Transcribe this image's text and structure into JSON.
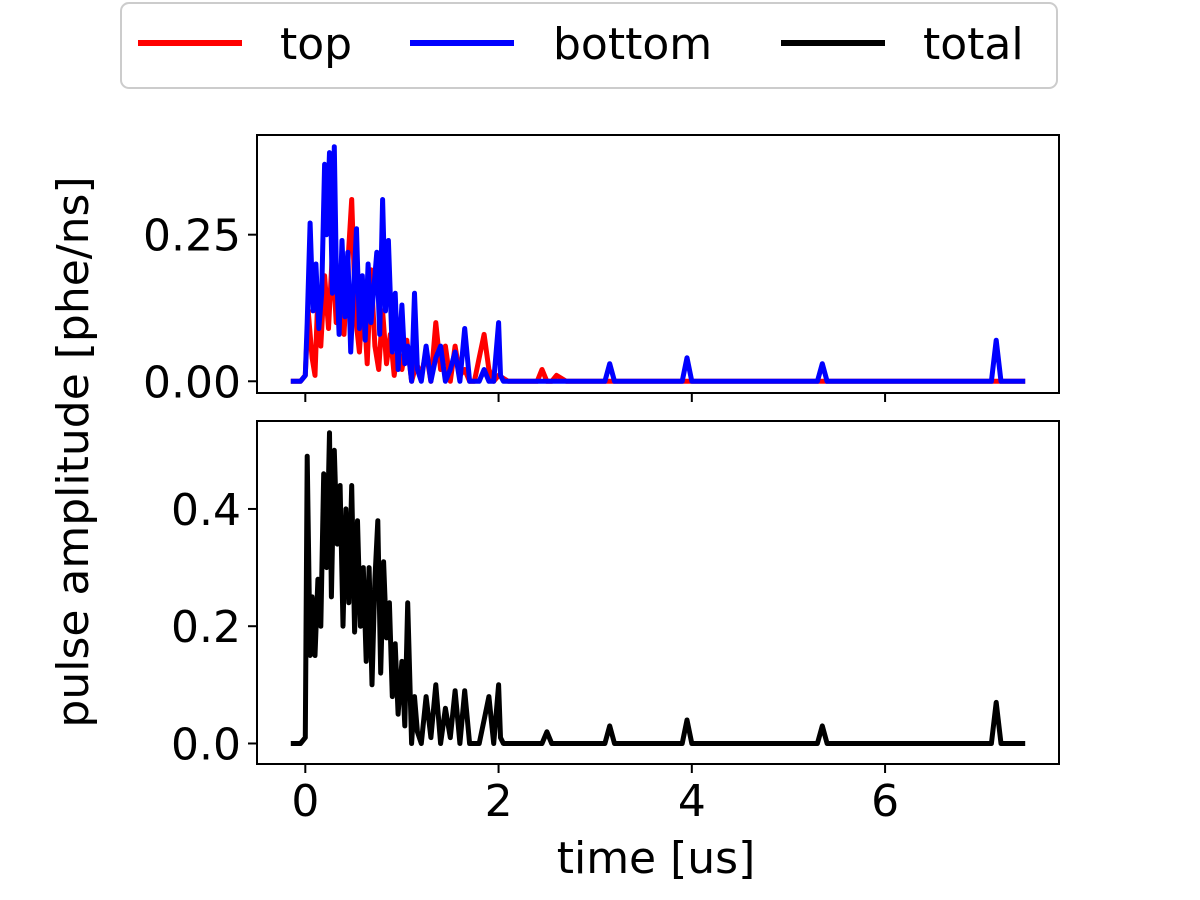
{
  "chart_data": {
    "type": "line",
    "ylabel": "pulse amplitude [phe/ns]",
    "xlabel": "time [us]",
    "xlim": [
      -0.5,
      7.8
    ],
    "xticks": [
      0,
      2,
      4,
      6
    ],
    "xtick_labels": [
      "0",
      "2",
      "4",
      "6"
    ],
    "legend": {
      "placement": "top-center",
      "entries": [
        {
          "label": "top",
          "color": "#ff0000"
        },
        {
          "label": "bottom",
          "color": "#0000ff"
        },
        {
          "label": "total",
          "color": "#000000"
        }
      ]
    },
    "panels": [
      {
        "name": "upper",
        "ylim": [
          -0.02,
          0.42
        ],
        "yticks": [
          0.0,
          0.25
        ],
        "ytick_labels": [
          "0.00",
          "0.25"
        ],
        "series": [
          {
            "name": "top",
            "color": "#ff0000",
            "x": [
              -0.15,
              -0.05,
              0.0,
              0.03,
              0.07,
              0.1,
              0.13,
              0.16,
              0.2,
              0.24,
              0.28,
              0.32,
              0.36,
              0.4,
              0.44,
              0.48,
              0.52,
              0.56,
              0.6,
              0.64,
              0.68,
              0.72,
              0.76,
              0.8,
              0.84,
              0.88,
              0.92,
              0.96,
              1.0,
              1.05,
              1.1,
              1.15,
              1.2,
              1.25,
              1.3,
              1.35,
              1.4,
              1.45,
              1.5,
              1.55,
              1.6,
              1.65,
              1.7,
              1.75,
              1.8,
              1.85,
              1.9,
              1.95,
              2.0,
              2.1,
              2.2,
              2.3,
              2.4,
              2.45,
              2.5,
              2.55,
              2.6,
              2.7,
              3.0,
              3.5,
              4.0,
              5.0,
              6.0,
              7.0,
              7.45
            ],
            "y": [
              0.0,
              0.0,
              0.01,
              0.12,
              0.04,
              0.01,
              0.15,
              0.06,
              0.18,
              0.09,
              0.22,
              0.1,
              0.17,
              0.08,
              0.2,
              0.31,
              0.11,
              0.05,
              0.15,
              0.03,
              0.19,
              0.06,
              0.02,
              0.12,
              0.03,
              0.08,
              0.01,
              0.06,
              0.02,
              0.07,
              0.0,
              0.03,
              0.01,
              0.05,
              0.0,
              0.1,
              0.02,
              0.06,
              0.0,
              0.06,
              0.01,
              0.02,
              0.0,
              0.0,
              0.04,
              0.08,
              0.02,
              0.0,
              0.01,
              0.0,
              0.0,
              0.0,
              0.0,
              0.02,
              0.0,
              0.0,
              0.01,
              0.0,
              0.0,
              0.0,
              0.0,
              0.0,
              0.0,
              0.0,
              0.0
            ]
          },
          {
            "name": "bottom",
            "color": "#0000ff",
            "x": [
              -0.15,
              -0.05,
              0.0,
              0.02,
              0.05,
              0.08,
              0.11,
              0.14,
              0.17,
              0.2,
              0.22,
              0.25,
              0.28,
              0.3,
              0.32,
              0.35,
              0.38,
              0.41,
              0.44,
              0.47,
              0.5,
              0.53,
              0.56,
              0.59,
              0.62,
              0.65,
              0.68,
              0.71,
              0.74,
              0.77,
              0.8,
              0.83,
              0.86,
              0.9,
              0.93,
              0.96,
              1.0,
              1.03,
              1.06,
              1.1,
              1.13,
              1.16,
              1.2,
              1.25,
              1.3,
              1.35,
              1.4,
              1.45,
              1.5,
              1.55,
              1.6,
              1.65,
              1.7,
              1.8,
              1.85,
              1.9,
              1.95,
              2.0,
              2.02,
              2.05,
              2.1,
              2.5,
              3.1,
              3.15,
              3.2,
              3.25,
              3.9,
              3.95,
              4.0,
              4.05,
              5.3,
              5.35,
              5.4,
              5.45,
              7.1,
              7.15,
              7.2,
              7.45
            ],
            "y": [
              0.0,
              0.0,
              0.01,
              0.1,
              0.27,
              0.12,
              0.2,
              0.09,
              0.15,
              0.37,
              0.25,
              0.39,
              0.15,
              0.4,
              0.2,
              0.08,
              0.24,
              0.11,
              0.22,
              0.05,
              0.16,
              0.26,
              0.09,
              0.18,
              0.07,
              0.2,
              0.1,
              0.16,
              0.22,
              0.08,
              0.31,
              0.12,
              0.24,
              0.05,
              0.15,
              0.02,
              0.13,
              0.03,
              0.06,
              0.0,
              0.15,
              0.02,
              0.0,
              0.06,
              0.0,
              0.04,
              0.06,
              0.0,
              0.02,
              0.05,
              0.0,
              0.09,
              0.0,
              0.0,
              0.02,
              0.0,
              0.0,
              0.1,
              0.01,
              0.0,
              0.0,
              0.0,
              0.0,
              0.03,
              0.0,
              0.0,
              0.0,
              0.04,
              0.0,
              0.0,
              0.0,
              0.03,
              0.0,
              0.0,
              0.0,
              0.07,
              0.0,
              0.0
            ]
          }
        ]
      },
      {
        "name": "lower",
        "ylim": [
          -0.035,
          0.55
        ],
        "yticks": [
          0.0,
          0.2,
          0.4
        ],
        "ytick_labels": [
          "0.0",
          "0.2",
          "0.4"
        ],
        "series": [
          {
            "name": "total",
            "color": "#000000",
            "x": [
              -0.15,
              -0.05,
              0.0,
              0.02,
              0.05,
              0.07,
              0.1,
              0.13,
              0.16,
              0.19,
              0.22,
              0.25,
              0.27,
              0.3,
              0.33,
              0.36,
              0.39,
              0.42,
              0.45,
              0.48,
              0.51,
              0.54,
              0.57,
              0.6,
              0.63,
              0.66,
              0.69,
              0.72,
              0.75,
              0.78,
              0.81,
              0.84,
              0.87,
              0.9,
              0.93,
              0.96,
              1.0,
              1.03,
              1.06,
              1.1,
              1.13,
              1.16,
              1.2,
              1.25,
              1.3,
              1.35,
              1.4,
              1.45,
              1.5,
              1.55,
              1.6,
              1.65,
              1.7,
              1.8,
              1.85,
              1.9,
              1.95,
              2.0,
              2.02,
              2.05,
              2.1,
              2.45,
              2.5,
              2.55,
              2.6,
              3.1,
              3.15,
              3.2,
              3.25,
              3.9,
              3.95,
              4.0,
              4.05,
              5.3,
              5.35,
              5.4,
              5.45,
              7.1,
              7.15,
              7.2,
              7.45
            ],
            "y": [
              0.0,
              0.0,
              0.01,
              0.49,
              0.15,
              0.25,
              0.15,
              0.28,
              0.2,
              0.46,
              0.3,
              0.53,
              0.25,
              0.5,
              0.34,
              0.44,
              0.2,
              0.4,
              0.24,
              0.44,
              0.19,
              0.38,
              0.2,
              0.3,
              0.14,
              0.3,
              0.1,
              0.28,
              0.38,
              0.12,
              0.31,
              0.18,
              0.24,
              0.08,
              0.17,
              0.05,
              0.14,
              0.03,
              0.24,
              0.0,
              0.08,
              0.02,
              0.0,
              0.08,
              0.01,
              0.1,
              0.0,
              0.06,
              0.01,
              0.09,
              0.0,
              0.09,
              0.0,
              0.0,
              0.04,
              0.08,
              0.0,
              0.1,
              0.01,
              0.0,
              0.0,
              0.0,
              0.02,
              0.0,
              0.0,
              0.0,
              0.03,
              0.0,
              0.0,
              0.0,
              0.04,
              0.0,
              0.0,
              0.0,
              0.03,
              0.0,
              0.0,
              0.0,
              0.07,
              0.0,
              0.0
            ]
          }
        ]
      }
    ]
  }
}
